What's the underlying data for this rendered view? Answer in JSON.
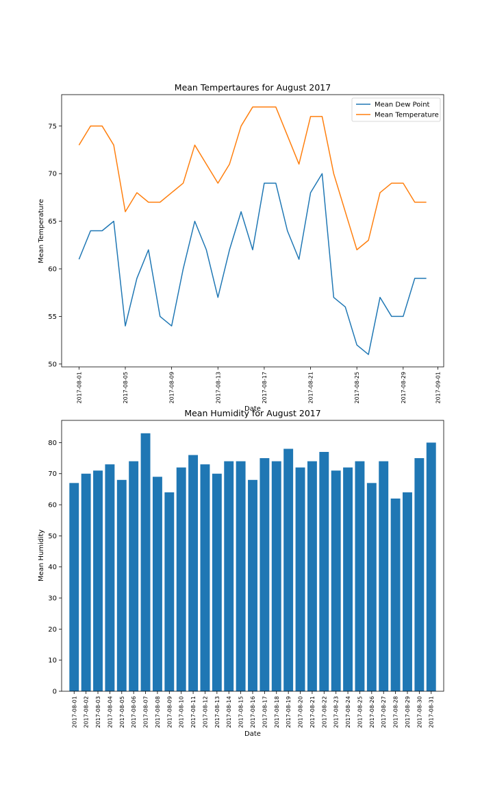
{
  "chart_data": [
    {
      "type": "line",
      "title": "Mean Tempertaures for August 2017",
      "xlabel": "Date",
      "ylabel": "Mean Temperature",
      "ylim": [
        49.7,
        78.3
      ],
      "yticks": [
        50,
        55,
        60,
        65,
        70,
        75
      ],
      "xlim": [
        "2017-07-30T12:00",
        "2017-09-01T12:00"
      ],
      "xticks": [
        "2017-08-01",
        "2017-08-05",
        "2017-08-09",
        "2017-08-13",
        "2017-08-17",
        "2017-08-21",
        "2017-08-25",
        "2017-08-29",
        "2017-09-01"
      ],
      "x": [
        "2017-08-01",
        "2017-08-02",
        "2017-08-03",
        "2017-08-04",
        "2017-08-05",
        "2017-08-06",
        "2017-08-07",
        "2017-08-08",
        "2017-08-09",
        "2017-08-10",
        "2017-08-11",
        "2017-08-12",
        "2017-08-13",
        "2017-08-14",
        "2017-08-15",
        "2017-08-16",
        "2017-08-17",
        "2017-08-18",
        "2017-08-19",
        "2017-08-20",
        "2017-08-21",
        "2017-08-22",
        "2017-08-23",
        "2017-08-24",
        "2017-08-25",
        "2017-08-26",
        "2017-08-27",
        "2017-08-28",
        "2017-08-29",
        "2017-08-30",
        "2017-08-31"
      ],
      "series": [
        {
          "name": "Mean Dew Point",
          "color": "#1f77b4",
          "values": [
            61,
            64,
            64,
            65,
            54,
            59,
            62,
            55,
            54,
            60,
            65,
            62,
            57,
            62,
            66,
            62,
            69,
            69,
            64,
            61,
            68,
            70,
            57,
            56,
            52,
            51,
            57,
            55,
            55,
            59,
            59
          ]
        },
        {
          "name": "Mean Temperature",
          "color": "#ff7f0e",
          "values": [
            73,
            75,
            75,
            73,
            66,
            68,
            67,
            67,
            68,
            69,
            73,
            71,
            69,
            71,
            75,
            77,
            77,
            77,
            74,
            71,
            76,
            76,
            70,
            66,
            62,
            63,
            68,
            69,
            69,
            67,
            67
          ]
        }
      ],
      "legend": "top-right",
      "grid": false
    },
    {
      "type": "bar",
      "title": "Mean Humidity for August 2017",
      "xlabel": "Date",
      "ylabel": "Mean Humidity",
      "ylim": [
        0,
        87.15
      ],
      "yticks": [
        0,
        10,
        20,
        30,
        40,
        50,
        60,
        70,
        80
      ],
      "categories": [
        "2017-08-01",
        "2017-08-02",
        "2017-08-03",
        "2017-08-04",
        "2017-08-05",
        "2017-08-06",
        "2017-08-07",
        "2017-08-08",
        "2017-08-09",
        "2017-08-10",
        "2017-08-11",
        "2017-08-12",
        "2017-08-13",
        "2017-08-14",
        "2017-08-15",
        "2017-08-16",
        "2017-08-17",
        "2017-08-18",
        "2017-08-19",
        "2017-08-20",
        "2017-08-21",
        "2017-08-22",
        "2017-08-23",
        "2017-08-24",
        "2017-08-25",
        "2017-08-26",
        "2017-08-27",
        "2017-08-28",
        "2017-08-29",
        "2017-08-30",
        "2017-08-31"
      ],
      "values": [
        67,
        70,
        71,
        73,
        68,
        74,
        83,
        69,
        64,
        72,
        76,
        73,
        70,
        74,
        74,
        68,
        75,
        74,
        78,
        72,
        74,
        77,
        71,
        72,
        74,
        67,
        74,
        62,
        64,
        75,
        80
      ],
      "color": "#1f77b4",
      "grid": false
    }
  ]
}
